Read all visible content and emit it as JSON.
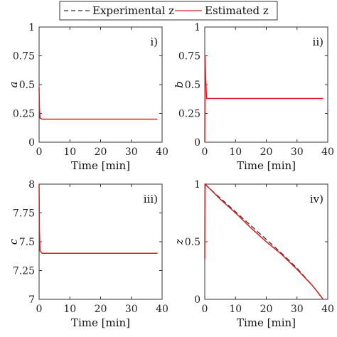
{
  "legend": {
    "experimental_label": "Experimental z",
    "estimated_label": "Estimated z"
  },
  "colors": {
    "experimental": "#333333",
    "estimated": "#d62020"
  },
  "chart_data": [
    {
      "type": "line",
      "panel": "i)",
      "xlabel": "Time [min]",
      "ylabel": "a",
      "xlim": [
        0,
        40
      ],
      "ylim": [
        0,
        1
      ],
      "xticks": [
        0,
        10,
        20,
        30,
        40
      ],
      "yticks": [
        0,
        0.25,
        0.5,
        0.75,
        1
      ],
      "ytick_labels": [
        "0",
        "0.25",
        "0.5",
        "0.75",
        "1"
      ],
      "series": [
        {
          "name": "Estimated z",
          "style": "solid",
          "x": [
            0,
            0.1,
            0.3,
            1,
            38.5
          ],
          "y": [
            0.48,
            0.3,
            0.21,
            0.2,
            0.2
          ]
        }
      ]
    },
    {
      "type": "line",
      "panel": "ii)",
      "xlabel": "Time [min]",
      "ylabel": "b",
      "xlim": [
        0,
        40
      ],
      "ylim": [
        0,
        1
      ],
      "xticks": [
        0,
        10,
        20,
        30,
        40
      ],
      "yticks": [
        0,
        0.25,
        0.5,
        0.75,
        1
      ],
      "ytick_labels": [
        "0",
        "0.25",
        "0.5",
        "0.75",
        "1"
      ],
      "series": [
        {
          "name": "Estimated z",
          "style": "solid",
          "x": [
            0,
            0.1,
            0.3,
            0.6,
            38.5
          ],
          "y": [
            0,
            0.75,
            0.55,
            0.38,
            0.38
          ]
        }
      ]
    },
    {
      "type": "line",
      "panel": "iii)",
      "xlabel": "Time [min]",
      "ylabel": "c",
      "xlim": [
        0,
        40
      ],
      "ylim": [
        7,
        8
      ],
      "xticks": [
        0,
        10,
        20,
        30,
        40
      ],
      "yticks": [
        7,
        7.25,
        7.5,
        7.75,
        8
      ],
      "ytick_labels": [
        "7",
        "7.25",
        "7.5",
        "7.75",
        "8"
      ],
      "series": [
        {
          "name": "Estimated z",
          "style": "solid",
          "x": [
            0,
            0.1,
            0.3,
            1,
            38.5
          ],
          "y": [
            8,
            7.6,
            7.42,
            7.4,
            7.4
          ]
        }
      ]
    },
    {
      "type": "line",
      "panel": "iv)",
      "xlabel": "Time [min]",
      "ylabel": "z",
      "xlim": [
        0,
        40
      ],
      "ylim": [
        0,
        1
      ],
      "xticks": [
        0,
        10,
        20,
        30,
        40
      ],
      "yticks": [
        0,
        0.5,
        1
      ],
      "ytick_labels": [
        "0",
        "0.5",
        "1"
      ],
      "series": [
        {
          "name": "Experimental z",
          "style": "dashed",
          "x": [
            0,
            5,
            10,
            15,
            20,
            25,
            30,
            35,
            38.5
          ],
          "y": [
            1,
            0.88,
            0.76,
            0.64,
            0.52,
            0.4,
            0.27,
            0.12,
            0
          ]
        },
        {
          "name": "Estimated z",
          "style": "solid",
          "x": [
            0,
            0.05,
            0.15,
            5,
            10,
            15,
            20,
            25,
            30,
            35,
            38.5
          ],
          "y": [
            0.35,
            0.95,
            1,
            0.87,
            0.75,
            0.62,
            0.5,
            0.39,
            0.26,
            0.12,
            0
          ]
        }
      ]
    }
  ]
}
